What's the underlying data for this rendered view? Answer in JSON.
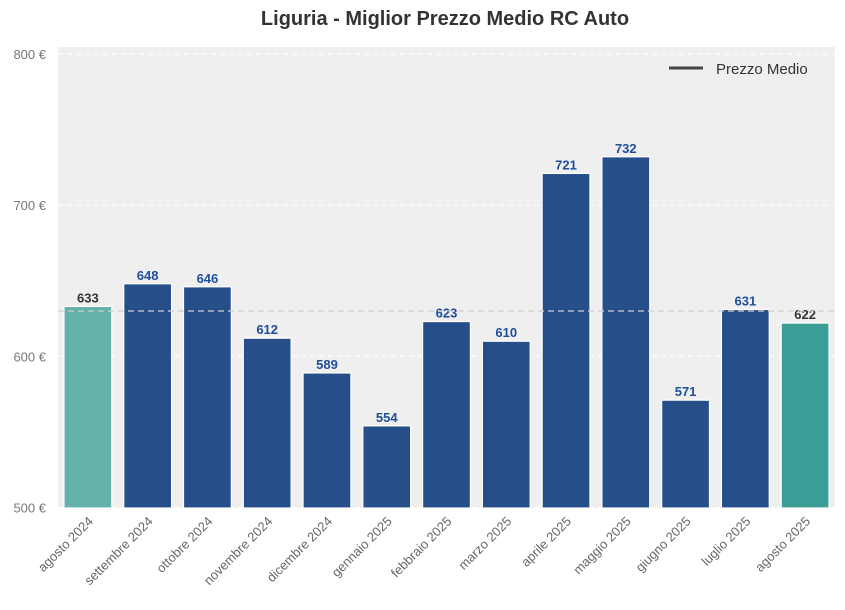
{
  "chart_data": {
    "type": "bar",
    "title": "Liguria - Miglior Prezzo Medio RC Auto",
    "xlabel": "",
    "ylabel": "",
    "ylim": [
      500,
      800
    ],
    "yticks": [
      500,
      600,
      700,
      800
    ],
    "ytick_labels": [
      "500 €",
      "600 €",
      "700 €",
      "800 €"
    ],
    "grid": true,
    "categories": [
      "agosto 2024",
      "settembre 2024",
      "ottobre 2024",
      "novembre 2024",
      "dicembre 2024",
      "gennaio 2025",
      "febbraio 2025",
      "marzo 2025",
      "aprile 2025",
      "maggio 2025",
      "giugno 2025",
      "luglio 2025",
      "agosto 2025"
    ],
    "values": [
      633,
      648,
      646,
      612,
      589,
      554,
      623,
      610,
      721,
      732,
      571,
      631,
      622
    ],
    "bar_colors": [
      "#64b0aa",
      "#264f8a",
      "#264f8a",
      "#264f8a",
      "#264f8a",
      "#264f8a",
      "#264f8a",
      "#264f8a",
      "#264f8a",
      "#264f8a",
      "#264f8a",
      "#264f8a",
      "#3a9e96"
    ],
    "label_colors": [
      "#333333",
      "#1f4e9a",
      "#1f4e9a",
      "#1f4e9a",
      "#1f4e9a",
      "#1f4e9a",
      "#1f4e9a",
      "#1f4e9a",
      "#1f4e9a",
      "#1f4e9a",
      "#1f4e9a",
      "#1f4e9a",
      "#333333"
    ],
    "reference_line": {
      "value": 630,
      "name": "Prezzo Medio"
    },
    "legend": {
      "position": "top-right",
      "entries": [
        "Prezzo Medio"
      ]
    }
  }
}
